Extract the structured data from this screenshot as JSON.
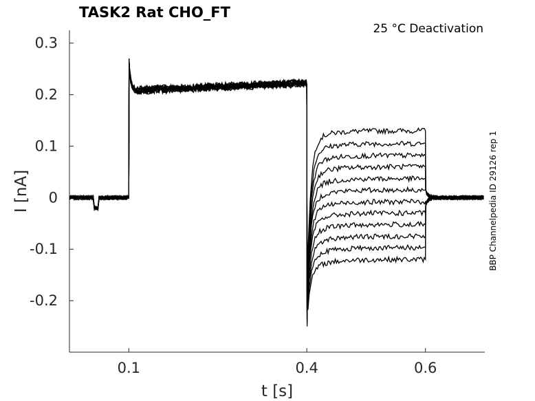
{
  "chart_data": {
    "type": "line",
    "title": "TASK2  Rat  CHO_FT",
    "annotation": "25 °C  Deactivation",
    "side_label": "BBP Channelpedia ID 29126 rep 1",
    "xlabel": "t [s]",
    "ylabel": "I [nA]",
    "xlim": [
      0.0,
      0.7
    ],
    "ylim": [
      -0.3,
      0.325
    ],
    "xticks": [
      {
        "v": 0.1,
        "label": "0.1"
      },
      {
        "v": 0.4,
        "label": "0.4"
      },
      {
        "v": 0.6,
        "label": "0.6"
      }
    ],
    "yticks": [
      {
        "v": 0.3,
        "label": "0.3"
      },
      {
        "v": 0.2,
        "label": "0.2"
      },
      {
        "v": 0.1,
        "label": "0.1"
      },
      {
        "v": 0,
        "label": "0"
      },
      {
        "v": -0.1,
        "label": "-0.1"
      },
      {
        "v": -0.2,
        "label": "-0.2"
      }
    ],
    "grid": false,
    "line_color": "#000000",
    "protocol": {
      "baseline_current": 0.0,
      "step_on_time": 0.1,
      "step_on_peak": 0.27,
      "step_start_current": 0.205,
      "step_end_current": 0.22,
      "deactivation_time": 0.4,
      "deactivation_dip": -0.25,
      "deactivation_end_time": 0.6,
      "artifact_time": 0.045,
      "artifact_current": -0.02
    },
    "series": [
      {
        "values": [
          0.13
        ]
      },
      {
        "values": [
          0.105
        ]
      },
      {
        "values": [
          0.082
        ]
      },
      {
        "values": [
          0.06
        ]
      },
      {
        "values": [
          0.037
        ]
      },
      {
        "values": [
          0.015
        ]
      },
      {
        "values": [
          -0.008
        ]
      },
      {
        "values": [
          -0.03
        ]
      },
      {
        "values": [
          -0.052
        ]
      },
      {
        "values": [
          -0.075
        ]
      },
      {
        "values": [
          -0.097
        ]
      },
      {
        "values": [
          -0.12
        ]
      }
    ]
  }
}
